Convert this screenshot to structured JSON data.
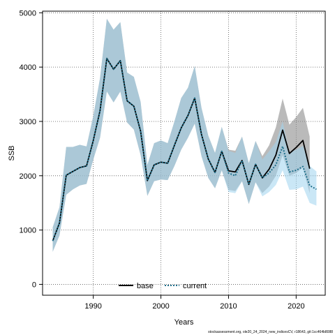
{
  "chart_data": {
    "type": "line",
    "title": "",
    "xlabel": "Years",
    "ylabel": "SSB",
    "xlim": [
      1982.5,
      2024.3
    ],
    "ylim": [
      -200,
      5030
    ],
    "x_ticks": [
      1990,
      2000,
      2010,
      2020
    ],
    "y_ticks": [
      0,
      1000,
      2000,
      3000,
      4000,
      5000
    ],
    "grid": true,
    "legend_position": "bottom-center",
    "x": [
      1984,
      1985,
      1986,
      1987,
      1988,
      1989,
      1990,
      1991,
      1992,
      1993,
      1994,
      1995,
      1996,
      1997,
      1998,
      1999,
      2000,
      2001,
      2002,
      2003,
      2004,
      2005,
      2006,
      2007,
      2008,
      2009,
      2010,
      2011,
      2012,
      2013,
      2014,
      2015,
      2016,
      2017,
      2018,
      2019,
      2020,
      2021,
      2022,
      2023
    ],
    "series": [
      {
        "name": "base",
        "color": "#000000",
        "line": "solid",
        "band_color": "#8c8c8c",
        "values": [
          800,
          1130,
          2010,
          2080,
          2150,
          2180,
          2650,
          3200,
          4160,
          3960,
          4120,
          3380,
          3280,
          2820,
          1910,
          2200,
          2250,
          2230,
          2560,
          2880,
          3110,
          3430,
          2760,
          2310,
          2060,
          2450,
          2090,
          2070,
          2280,
          1840,
          2210,
          1960,
          2120,
          2380,
          2840,
          2410,
          2520,
          2650,
          2130,
          null
        ],
        "lower": [
          600,
          900,
          1650,
          1750,
          1820,
          1850,
          2300,
          2700,
          3550,
          3350,
          3550,
          2980,
          2850,
          2380,
          1630,
          1900,
          1930,
          1920,
          2180,
          2480,
          2700,
          2960,
          2360,
          1960,
          1770,
          2100,
          1740,
          1720,
          1900,
          1480,
          1880,
          1680,
          1800,
          2000,
          2380,
          2000,
          2050,
          2150,
          1680,
          null
        ],
        "upper": [
          1050,
          1420,
          2530,
          2530,
          2570,
          2540,
          3100,
          3800,
          4890,
          4690,
          4830,
          3900,
          3820,
          3360,
          2200,
          2600,
          2650,
          2600,
          3000,
          3430,
          3620,
          4020,
          3250,
          2740,
          2420,
          2900,
          2480,
          2460,
          2720,
          2230,
          2640,
          2360,
          2560,
          2890,
          3420,
          2940,
          3080,
          3250,
          2720,
          null
        ]
      },
      {
        "name": "current",
        "color": "#1f6f8b",
        "line": "dotted",
        "band_color": "#9fd3ee",
        "values": [
          800,
          1130,
          2010,
          2080,
          2150,
          2180,
          2650,
          3200,
          4160,
          3960,
          4120,
          3380,
          3280,
          2820,
          1910,
          2200,
          2250,
          2230,
          2560,
          2880,
          3110,
          3430,
          2760,
          2310,
          2060,
          2450,
          2050,
          2000,
          2280,
          1840,
          2210,
          1960,
          2050,
          2200,
          2540,
          2070,
          2100,
          2170,
          1820,
          1750
        ],
        "lower": [
          600,
          900,
          1650,
          1750,
          1820,
          1850,
          2300,
          2700,
          3550,
          3350,
          3550,
          2980,
          2850,
          2380,
          1630,
          1900,
          1930,
          1920,
          2180,
          2480,
          2700,
          2960,
          2360,
          1960,
          1770,
          2100,
          1700,
          1680,
          1900,
          1480,
          1880,
          1620,
          1700,
          1830,
          2100,
          1740,
          1750,
          1800,
          1500,
          1450
        ],
        "upper": [
          1050,
          1420,
          2530,
          2530,
          2570,
          2540,
          3100,
          3800,
          4890,
          4690,
          4830,
          3900,
          3820,
          3360,
          2200,
          2600,
          2650,
          2600,
          3000,
          3430,
          3620,
          4020,
          3250,
          2740,
          2420,
          2900,
          2460,
          2420,
          2720,
          2230,
          2640,
          2300,
          2450,
          2620,
          3000,
          2430,
          2480,
          2550,
          2180,
          2080
        ]
      }
    ]
  },
  "footnote": "stockassessment.org, ole20_24_2024_new_indicesCV, r18643, git:1cc464b8088"
}
